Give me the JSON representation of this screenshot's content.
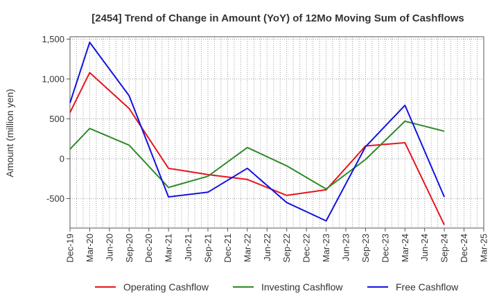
{
  "chart_data": {
    "type": "line",
    "title": "[2454]  Trend of Change in Amount (YoY) of 12Mo Moving Sum of Cashflows",
    "xlabel": "",
    "ylabel": "Amount (million yen)",
    "ylim": [
      -870,
      1530
    ],
    "yticks": [
      1500,
      1000,
      500,
      0,
      -500
    ],
    "ytick_labels": [
      "1,500",
      "1,000",
      "500",
      "0",
      "-500"
    ],
    "categories": [
      "Dec-19",
      "Mar-20",
      "Jun-20",
      "Sep-20",
      "Dec-20",
      "Mar-21",
      "Jun-21",
      "Sep-21",
      "Dec-21",
      "Mar-22",
      "Jun-22",
      "Sep-22",
      "Dec-22",
      "Mar-23",
      "Jun-23",
      "Sep-23",
      "Dec-23",
      "Mar-24",
      "Jun-24",
      "Sep-24",
      "Dec-24",
      "Mar-25"
    ],
    "grid": true,
    "legend_position": "bottom",
    "series": [
      {
        "name": "Operating Cashflow",
        "color": "#e8131b",
        "values": [
          580,
          1080,
          null,
          630,
          null,
          -120,
          null,
          -200,
          null,
          -260,
          null,
          -460,
          null,
          -390,
          null,
          160,
          null,
          200,
          null,
          -830,
          null,
          null
        ]
      },
      {
        "name": "Investing Cashflow",
        "color": "#2e8b26",
        "values": [
          120,
          380,
          null,
          170,
          null,
          -360,
          null,
          -220,
          null,
          140,
          null,
          -90,
          null,
          -380,
          null,
          -10,
          null,
          470,
          null,
          345,
          null,
          null
        ]
      },
      {
        "name": "Free Cashflow",
        "color": "#1212e0",
        "values": [
          700,
          1460,
          null,
          790,
          null,
          -480,
          null,
          -420,
          null,
          -120,
          null,
          -550,
          null,
          -780,
          null,
          150,
          null,
          670,
          null,
          -480,
          null,
          null
        ]
      }
    ]
  }
}
